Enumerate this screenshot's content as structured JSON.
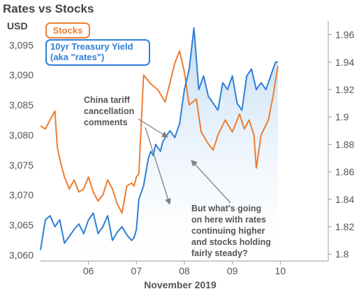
{
  "chart_data": {
    "type": "line",
    "title": "Rates vs Stocks",
    "xlabel": "November 2019",
    "y_left_label": "USD",
    "x_ticks": [
      "06",
      "07",
      "08",
      "09",
      "10"
    ],
    "y_left_ticks": [
      "3,060",
      "3,065",
      "3,070",
      "3,075",
      "3,080",
      "3,085",
      "3,090",
      "3,095"
    ],
    "y_right_ticks": [
      "1.8",
      "1.82",
      "1.84",
      "1.86",
      "1.88",
      "1.9",
      "1.92",
      "1.94",
      "1.96"
    ],
    "y_left_lim": [
      3059,
      3099
    ],
    "y_right_lim": [
      1.795,
      1.97
    ],
    "series": [
      {
        "name": "Stocks",
        "axis": "left",
        "color": "#ed7d31",
        "x": [
          5.0,
          5.1,
          5.2,
          5.3,
          5.35,
          5.4,
          5.5,
          5.6,
          5.7,
          5.8,
          5.9,
          6.0,
          6.1,
          6.2,
          6.3,
          6.4,
          6.5,
          6.6,
          6.7,
          6.8,
          6.9,
          6.95,
          7.0,
          7.05,
          7.15,
          7.3,
          7.45,
          7.6,
          7.8,
          7.9,
          8.0,
          8.1,
          8.25,
          8.35,
          8.5,
          8.6,
          8.7,
          8.85,
          9.0,
          9.15,
          9.25,
          9.35,
          9.45,
          9.5,
          9.6,
          9.75,
          9.85,
          9.95
        ],
        "values": [
          3081.5,
          3081,
          3082.5,
          3084,
          3078,
          3076,
          3073,
          3071,
          3072.5,
          3070.5,
          3071,
          3073,
          3070.5,
          3069,
          3070,
          3072.5,
          3071,
          3068.5,
          3067,
          3071.5,
          3072,
          3071.5,
          3073,
          3073.5,
          3090,
          3088.5,
          3087.5,
          3085.5,
          3092,
          3094,
          3090.5,
          3085,
          3086,
          3080.5,
          3078.5,
          3077.5,
          3080,
          3082.5,
          3080.5,
          3083.5,
          3081,
          3082.5,
          3080,
          3074.5,
          3080,
          3082.5,
          3086.5,
          3091.5
        ]
      },
      {
        "name": "10yr Treasury Yield (aka \"rates\")",
        "axis": "right",
        "color": "#2d7fd8",
        "x": [
          5.0,
          5.1,
          5.2,
          5.3,
          5.4,
          5.5,
          5.6,
          5.7,
          5.8,
          5.9,
          6.0,
          6.1,
          6.2,
          6.3,
          6.4,
          6.5,
          6.6,
          6.7,
          6.8,
          6.9,
          6.95,
          7.0,
          7.05,
          7.15,
          7.25,
          7.3,
          7.35,
          7.4,
          7.5,
          7.55,
          7.6,
          7.7,
          7.8,
          7.9,
          8.0,
          8.1,
          8.2,
          8.3,
          8.4,
          8.5,
          8.6,
          8.7,
          8.8,
          8.9,
          9.0,
          9.1,
          9.2,
          9.3,
          9.4,
          9.5,
          9.6,
          9.7,
          9.8,
          9.9,
          9.95
        ],
        "values": [
          1.803,
          1.825,
          1.828,
          1.82,
          1.825,
          1.808,
          1.813,
          1.818,
          1.822,
          1.815,
          1.825,
          1.83,
          1.815,
          1.82,
          1.828,
          1.81,
          1.816,
          1.82,
          1.814,
          1.81,
          1.812,
          1.818,
          1.84,
          1.85,
          1.87,
          1.875,
          1.872,
          1.88,
          1.875,
          1.882,
          1.885,
          1.89,
          1.885,
          1.895,
          1.92,
          1.935,
          1.965,
          1.92,
          1.93,
          1.915,
          1.91,
          1.905,
          1.925,
          1.92,
          1.93,
          1.91,
          1.905,
          1.93,
          1.935,
          1.92,
          1.925,
          1.92,
          1.93,
          1.94,
          1.94
        ]
      }
    ]
  },
  "legend": {
    "stocks": "Stocks",
    "rates_line1": "10yr Treasury Yield",
    "rates_line2": "(aka \"rates\")"
  },
  "annotations": {
    "china": [
      "China tariff",
      "cancellation",
      "comments"
    ],
    "question": [
      "But what's going",
      "on here with rates",
      "continuing higher",
      "and stocks holding",
      "fairly steady?"
    ]
  },
  "colors": {
    "stocks": "#ed7d31",
    "rates": "#2d7fd8",
    "rates_fill": "#cfe2f6",
    "arrow": "#808080",
    "axis": "#9a9a9a"
  }
}
